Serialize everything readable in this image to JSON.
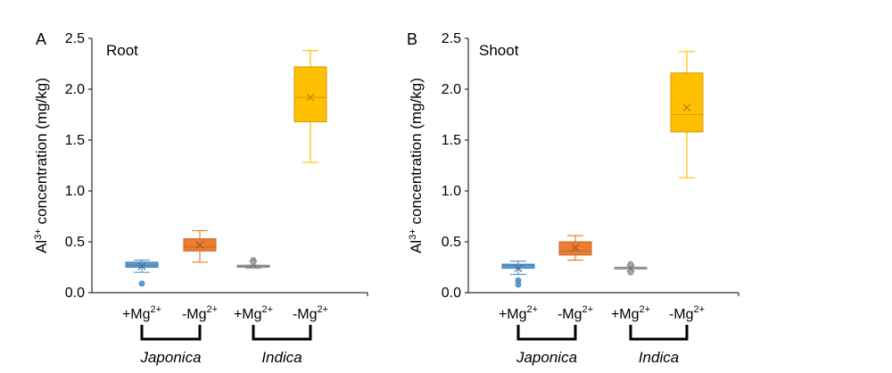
{
  "chart_data": [
    {
      "type": "box",
      "panel_letter": "A",
      "title": "Root",
      "ylabel": {
        "pre": "Al",
        "sup": "3+",
        "post": " concentration (mg/kg)"
      },
      "ylim": [
        0,
        2.5
      ],
      "yticks": [
        "0.0",
        "0.5",
        "1.0",
        "1.5",
        "2.0",
        "2.5"
      ],
      "categories": [
        {
          "base": "+Mg",
          "sup": "2+"
        },
        {
          "base": "-Mg",
          "sup": "2+"
        },
        {
          "base": "+Mg",
          "sup": "2+"
        },
        {
          "base": "-Mg",
          "sup": "2+"
        }
      ],
      "groups": [
        {
          "label": "Japonica",
          "span": [
            0,
            1
          ]
        },
        {
          "label": "Indica",
          "span": [
            2,
            3
          ]
        }
      ],
      "boxes": [
        {
          "color": "#5B9BD5",
          "min": 0.2,
          "q1": 0.25,
          "median": 0.27,
          "q3": 0.3,
          "max": 0.32,
          "mean": 0.26,
          "outliers": [
            0.09
          ]
        },
        {
          "color": "#ED7D31",
          "min": 0.3,
          "q1": 0.41,
          "median": 0.45,
          "q3": 0.53,
          "max": 0.61,
          "mean": 0.47,
          "outliers": []
        },
        {
          "color": "#A5A5A5",
          "min": 0.24,
          "q1": 0.25,
          "median": 0.26,
          "q3": 0.27,
          "max": 0.27,
          "mean": 0.28,
          "outliers": [
            0.32,
            0.3
          ]
        },
        {
          "color": "#FFC000",
          "min": 1.28,
          "q1": 1.68,
          "median": 1.92,
          "q3": 2.22,
          "max": 2.38,
          "mean": 1.92,
          "outliers": []
        }
      ]
    },
    {
      "type": "box",
      "panel_letter": "B",
      "title": "Shoot",
      "ylabel": {
        "pre": "Al",
        "sup": "3+",
        "post": " concentration (mg/kg)"
      },
      "ylim": [
        0,
        2.5
      ],
      "yticks": [
        "0.0",
        "0.5",
        "1.0",
        "1.5",
        "2.0",
        "2.5"
      ],
      "categories": [
        {
          "base": "+Mg",
          "sup": "2+"
        },
        {
          "base": "-Mg",
          "sup": "2+"
        },
        {
          "base": "+Mg",
          "sup": "2+"
        },
        {
          "base": "-Mg",
          "sup": "2+"
        }
      ],
      "groups": [
        {
          "label": "Japonica",
          "span": [
            0,
            1
          ]
        },
        {
          "label": "Indica",
          "span": [
            2,
            3
          ]
        }
      ],
      "boxes": [
        {
          "color": "#5B9BD5",
          "min": 0.18,
          "q1": 0.24,
          "median": 0.27,
          "q3": 0.28,
          "max": 0.31,
          "mean": 0.24,
          "outliers": [
            0.12,
            0.08
          ]
        },
        {
          "color": "#ED7D31",
          "min": 0.32,
          "q1": 0.37,
          "median": 0.41,
          "q3": 0.5,
          "max": 0.56,
          "mean": 0.44,
          "outliers": []
        },
        {
          "color": "#A5A5A5",
          "min": 0.24,
          "q1": 0.24,
          "median": 0.25,
          "q3": 0.25,
          "max": 0.25,
          "mean": 0.24,
          "outliers": [
            0.28,
            0.2
          ]
        },
        {
          "color": "#FFC000",
          "min": 1.13,
          "q1": 1.58,
          "median": 1.75,
          "q3": 2.16,
          "max": 2.37,
          "mean": 1.82,
          "outliers": []
        }
      ]
    }
  ]
}
